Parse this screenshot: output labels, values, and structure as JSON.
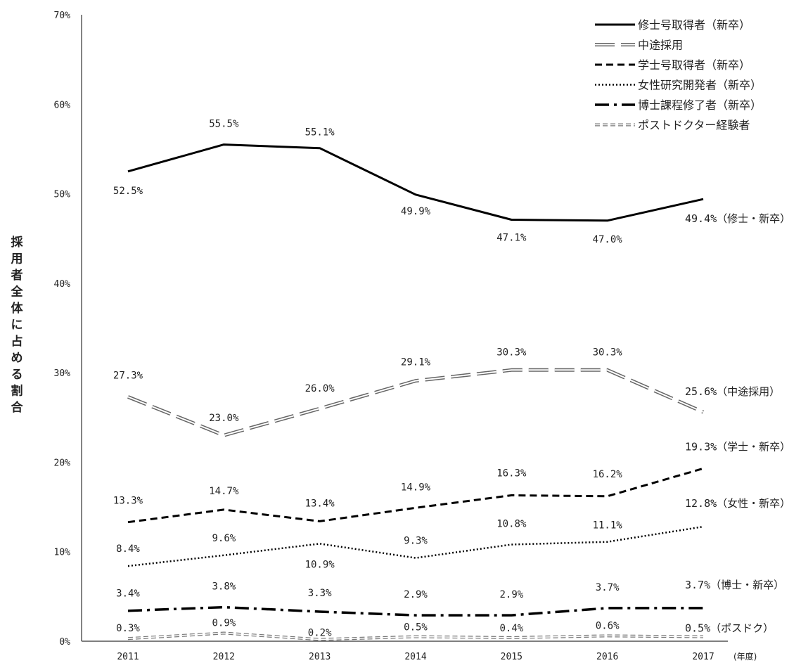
{
  "chart_data": {
    "type": "line",
    "title": "",
    "xlabel": "",
    "x_unit": "(年度)",
    "ylabel": "採用者全体に占める割合",
    "ylim": [
      0,
      70
    ],
    "y_ticks": [
      "0%",
      "10%",
      "20%",
      "30%",
      "40%",
      "50%",
      "60%",
      "70%"
    ],
    "categories": [
      "2011",
      "2012",
      "2013",
      "2014",
      "2015",
      "2016",
      "2017"
    ],
    "grid": false,
    "legend_position": "top-right",
    "series": [
      {
        "name": "修士号取得者（新卒）",
        "values": [
          52.5,
          55.5,
          55.1,
          49.9,
          47.1,
          47.0,
          49.4
        ],
        "labels": [
          "52.5%",
          "55.5%",
          "55.1%",
          "49.9%",
          "47.1%",
          "47.0%",
          "49.4%"
        ],
        "end_label": "（修士・新卒）",
        "style": "solid",
        "color": "#000000"
      },
      {
        "name": "中途採用",
        "values": [
          27.3,
          23.0,
          26.0,
          29.1,
          30.3,
          30.3,
          25.6
        ],
        "labels": [
          "27.3%",
          "23.0%",
          "26.0%",
          "29.1%",
          "30.3%",
          "30.3%",
          "25.6%"
        ],
        "end_label": "（中途採用）",
        "style": "double-dash",
        "color": "#666666"
      },
      {
        "name": "学士号取得者（新卒）",
        "values": [
          13.3,
          14.7,
          13.4,
          14.9,
          16.3,
          16.2,
          19.3
        ],
        "labels": [
          "13.3%",
          "14.7%",
          "13.4%",
          "14.9%",
          "16.3%",
          "16.2%",
          "19.3%"
        ],
        "end_label": "（学士・新卒）",
        "style": "dashed",
        "color": "#000000"
      },
      {
        "name": "女性研究開発者（新卒）",
        "values": [
          8.4,
          9.6,
          10.9,
          9.3,
          10.8,
          11.1,
          12.8
        ],
        "labels": [
          "8.4%",
          "9.6%",
          "10.9%",
          "9.3%",
          "10.8%",
          "11.1%",
          "12.8%"
        ],
        "end_label": "（女性・新卒）",
        "style": "dotted",
        "color": "#000000"
      },
      {
        "name": "博士課程修了者（新卒）",
        "values": [
          3.4,
          3.8,
          3.3,
          2.9,
          2.9,
          3.7,
          3.7
        ],
        "labels": [
          "3.4%",
          "3.8%",
          "3.3%",
          "2.9%",
          "2.9%",
          "3.7%",
          "3.7%"
        ],
        "end_label": "（博士・新卒）",
        "style": "dash-dot",
        "color": "#000000"
      },
      {
        "name": "ポストドクター経験者",
        "values": [
          0.3,
          0.9,
          0.2,
          0.5,
          0.4,
          0.6,
          0.5
        ],
        "labels": [
          "0.3%",
          "0.9%",
          "0.2%",
          "0.5%",
          "0.4%",
          "0.6%",
          "0.5%"
        ],
        "end_label": "（ポスドク）",
        "style": "double-dash-small",
        "color": "#777777"
      }
    ]
  }
}
